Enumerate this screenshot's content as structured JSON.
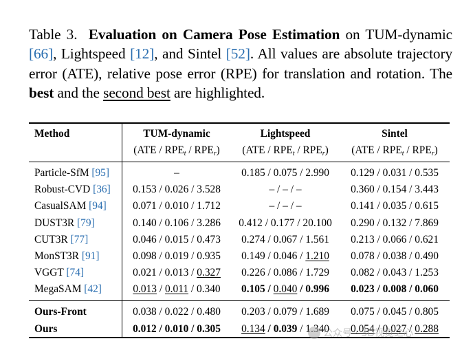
{
  "caption": {
    "label": "Table 3.",
    "title": "Evaluation on Camera Pose Estimation",
    "t1": " on TUM-dynamic ",
    "r1": "[66]",
    "t2": ", Lightspeed ",
    "r2": "[12]",
    "t3": ", and Sintel ",
    "r3": "[52]",
    "t4": ". All values are absolute trajectory error (ATE), relative pose error (RPE) for translation and rotation. The ",
    "best": "best",
    "t5": " and the ",
    "second": "second best",
    "t6": " are highlighted."
  },
  "table": {
    "header": {
      "method": "Method",
      "c1": "TUM-dynamic",
      "c2": "Lightspeed",
      "c3": "Sintel",
      "sub_prefix": "(ATE / RPE",
      "sub_t": "t",
      "sub_mid": " / RPE",
      "sub_r": "r",
      "sub_suffix": ")"
    },
    "rows": [
      {
        "name": "Particle-SfM ",
        "ref": "[95]",
        "c1": "–",
        "c2": "0.185 / 0.075 / 2.990",
        "c3": "0.129 / 0.031 / 0.535"
      },
      {
        "name": "Robust-CVD ",
        "ref": "[36]",
        "c1": "0.153 / 0.026 / 3.528",
        "c2": "– / – / –",
        "c3": "0.360 / 0.154 / 3.443"
      },
      {
        "name": "CasualSAM ",
        "ref": "[94]",
        "c1": "0.071 / 0.010 / 1.712",
        "c2": "– / – / –",
        "c3": "0.141 / 0.035 / 0.615"
      },
      {
        "name": "DUST3R ",
        "ref": "[79]",
        "c1": "0.140 / 0.106 / 3.286",
        "c2": "0.412 / 0.177 / 20.100",
        "c3": "0.290 / 0.132 / 7.869"
      },
      {
        "name": "CUT3R ",
        "ref": "[77]",
        "c1": "0.046 / 0.015 / 0.473",
        "c2": "0.274 / 0.067 / 1.561",
        "c3": "0.213 / 0.066 / 0.621"
      },
      {
        "name": "MonST3R ",
        "ref": "[91]",
        "c1": "0.098 / 0.019 / 0.935",
        "c2a": "0.149 / 0.046 / ",
        "c2b": "1.210",
        "c3": "0.078 / 0.038 / 0.490"
      },
      {
        "name": "VGGT ",
        "ref": "[74]",
        "c1a": "0.021 / 0.013 / ",
        "c1b": "0.327",
        "c2": "0.226 / 0.086 / 1.729",
        "c3": "0.082 / 0.043 / 1.253"
      },
      {
        "name": "MegaSAM ",
        "ref": "[42]",
        "c1a": "0.013",
        "c1s": " / ",
        "c1b": "0.011",
        "c1c": " / 0.340",
        "c2a": "0.105",
        "c2s": " / ",
        "c2b": "0.040",
        "c2s2": " / ",
        "c2c": "0.996",
        "c3": "0.023 / 0.008 / 0.060"
      }
    ],
    "ours_front": {
      "name": "Ours-Front",
      "c1": "0.038 / 0.022 / 0.480",
      "c2": "0.203 / 0.079 / 1.689",
      "c3": "0.075 / 0.045 / 0.805"
    },
    "ours": {
      "name": "Ours",
      "c1": "0.012 / 0.010 / 0.305",
      "c2a": "0.134",
      "c2s": " / ",
      "c2b": "0.039",
      "c2c": " / 1.340",
      "c3a": "0.054",
      "c3s": " / ",
      "c3b": "0.027",
      "c3s2": " / ",
      "c3c": "0.288"
    }
  },
  "watermark": "公众号 · 3D视觉之心"
}
